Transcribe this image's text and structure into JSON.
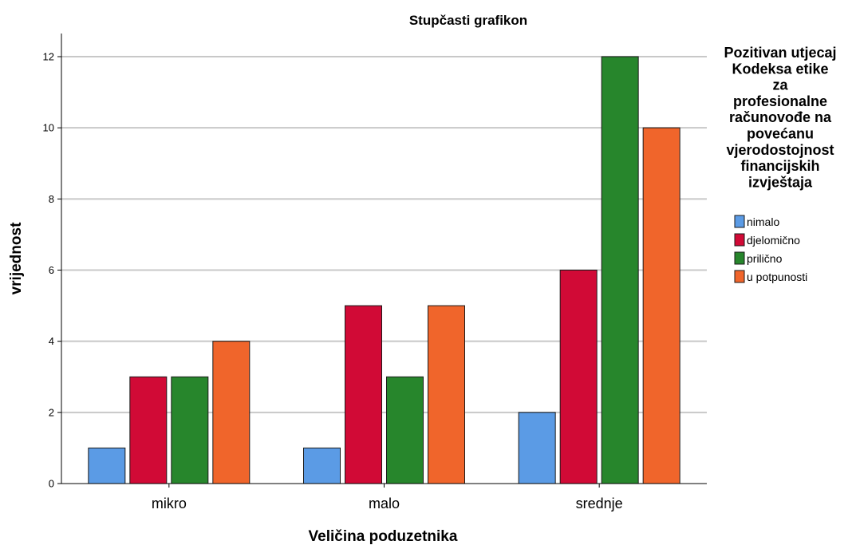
{
  "chart_data": {
    "type": "bar",
    "title": "Stupčasti grafikon",
    "xlabel": "Veličina poduzetnika",
    "ylabel": "vrijednost",
    "categories": [
      "mikro",
      "malo",
      "srednje"
    ],
    "ylim": [
      0,
      12
    ],
    "yticks": [
      0,
      2,
      4,
      6,
      8,
      10,
      12
    ],
    "grid": true,
    "legend": {
      "placement": "right",
      "title_lines": [
        "Pozitivan utjecaj",
        "Kodeksa etike",
        "za",
        "profesionalne",
        "računovođe na",
        "povećanu",
        "vjerodostojnost",
        "financijskih",
        "izvještaja"
      ]
    },
    "series": [
      {
        "name": "nimalo",
        "values": [
          1,
          1,
          2
        ],
        "color": "#5b9be5"
      },
      {
        "name": "djelomično",
        "values": [
          3,
          5,
          6
        ],
        "color": "#d10a36"
      },
      {
        "name": "prilično",
        "values": [
          3,
          3,
          12
        ],
        "color": "#27862c"
      },
      {
        "name": "u potpunosti",
        "values": [
          4,
          5,
          10
        ],
        "color": "#f0652b"
      }
    ]
  }
}
